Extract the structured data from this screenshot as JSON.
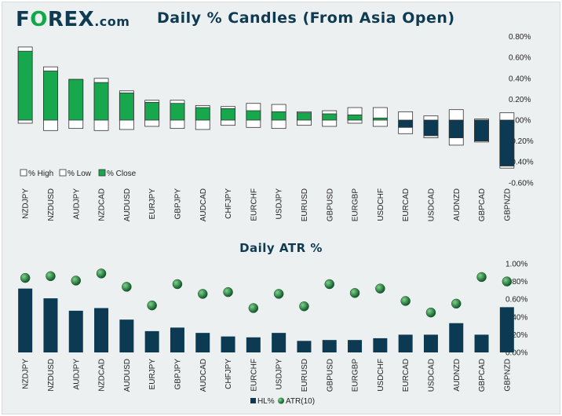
{
  "header": {
    "logo_prefix": "F",
    "logo_o": "O",
    "logo_rest": "REX",
    "logo_suffix": ".com"
  },
  "colors": {
    "navy": "#0b3a52",
    "green": "#17a84e",
    "ball_light": "#7fd38a",
    "ball_dark": "#0e5a2a"
  },
  "chart_data": [
    {
      "type": "bar",
      "title": "Daily % Candles (From Asia Open)",
      "categories": [
        "NZDJPY",
        "NZDUSD",
        "AUDJPY",
        "NZDCAD",
        "AUDUSD",
        "EURJPY",
        "GBPJPY",
        "AUDCAD",
        "CHFJPY",
        "EURCHF",
        "USDJPY",
        "EURUSD",
        "GBPUSD",
        "EURGBP",
        "USDCHF",
        "EURCAD",
        "USDCAD",
        "AUDNZD",
        "GBPCAD",
        "GBPNZD"
      ],
      "series": [
        {
          "name": "% High",
          "values": [
            0.7,
            0.51,
            0.39,
            0.4,
            0.28,
            0.19,
            0.19,
            0.14,
            0.13,
            0.16,
            0.15,
            0.08,
            0.09,
            0.12,
            0.12,
            0.08,
            0.04,
            0.1,
            0.01,
            0.07
          ]
        },
        {
          "name": "% Low",
          "values": [
            -0.03,
            -0.1,
            -0.08,
            -0.1,
            -0.09,
            -0.06,
            -0.08,
            -0.09,
            -0.05,
            -0.07,
            -0.08,
            -0.05,
            -0.06,
            -0.03,
            -0.06,
            -0.13,
            -0.17,
            -0.24,
            -0.21,
            -0.46
          ]
        },
        {
          "name": "% Close",
          "values": [
            0.66,
            0.47,
            0.39,
            0.36,
            0.26,
            0.17,
            0.16,
            0.12,
            0.11,
            0.09,
            0.08,
            0.07,
            0.06,
            0.05,
            0.02,
            -0.07,
            -0.15,
            -0.17,
            -0.2,
            -0.44
          ]
        }
      ],
      "ylim": [
        -0.6,
        0.8
      ],
      "yticks": [
        "0.80%",
        "0.60%",
        "0.40%",
        "0.20%",
        "0.00%",
        "-0.20%",
        "-0.40%",
        "-0.60%"
      ],
      "legend": [
        "% High",
        "% Low",
        "% Close"
      ],
      "legend_position": "bottom-left"
    },
    {
      "type": "bar",
      "title": "Daily ATR %",
      "categories": [
        "NZDJPY",
        "NZDUSD",
        "AUDJPY",
        "NZDCAD",
        "AUDUSD",
        "EURJPY",
        "GBPJPY",
        "AUDCAD",
        "CHFJPY",
        "EURCHF",
        "USDJPY",
        "EURUSD",
        "GBPUSD",
        "EURGBP",
        "USDCHF",
        "EURCAD",
        "USDCAD",
        "AUDNZD",
        "GBPCAD",
        "GBPNZD"
      ],
      "series": [
        {
          "name": "HL%",
          "kind": "bar",
          "values": [
            0.72,
            0.61,
            0.47,
            0.5,
            0.37,
            0.24,
            0.28,
            0.22,
            0.18,
            0.17,
            0.22,
            0.13,
            0.14,
            0.14,
            0.16,
            0.2,
            0.2,
            0.33,
            0.2,
            0.51
          ]
        },
        {
          "name": "ATR(10)",
          "kind": "marker",
          "values": [
            0.84,
            0.86,
            0.81,
            0.89,
            0.74,
            0.53,
            0.77,
            0.66,
            0.68,
            0.5,
            0.66,
            0.52,
            0.77,
            0.67,
            0.72,
            0.58,
            0.45,
            0.55,
            0.85,
            0.8
          ]
        }
      ],
      "ylim": [
        0,
        1.0
      ],
      "yticks": [
        "1.00%",
        "0.80%",
        "0.60%",
        "0.40%",
        "0.20%",
        "0.00%"
      ],
      "legend": [
        "HL%",
        "ATR(10)"
      ],
      "legend_position": "bottom-center"
    }
  ]
}
